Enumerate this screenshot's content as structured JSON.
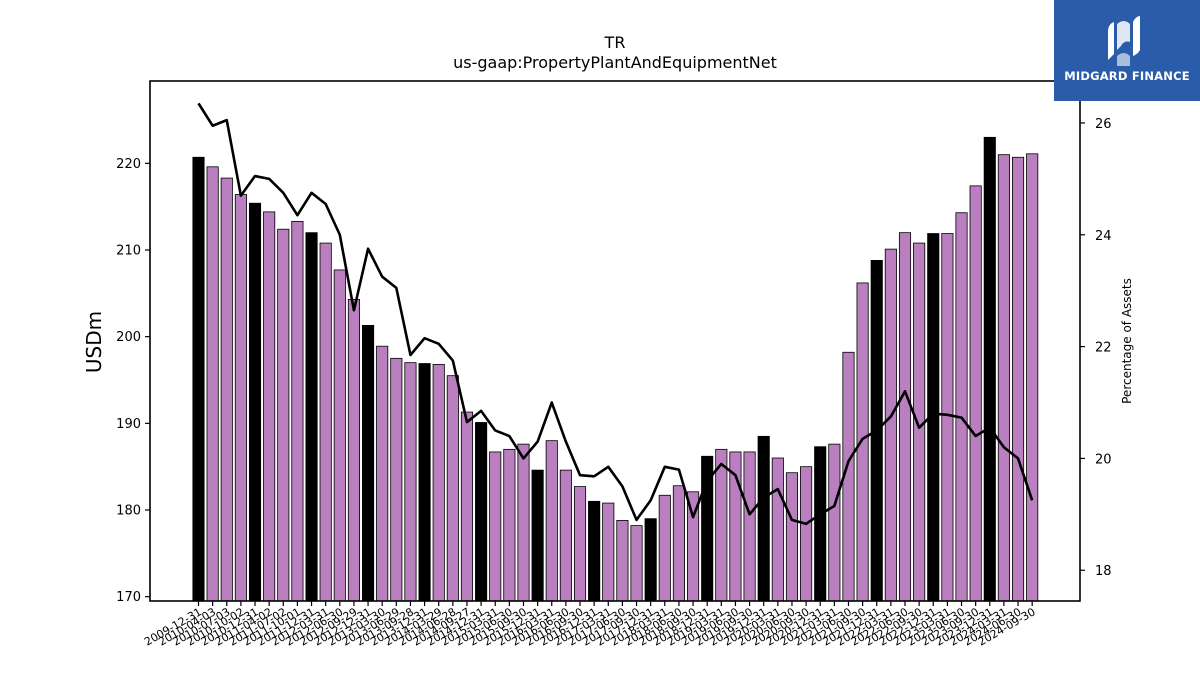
{
  "logo": {
    "text": "MIDGARD FINANCE",
    "icon": "midgard-logo-icon",
    "background": "#2a5caa"
  },
  "chart_data": {
    "type": "bar",
    "title": "TR",
    "subtitle": "us-gaap:PropertyPlantAndEquipmentNet",
    "ylabel": "USDm",
    "y2label": "Percentage of Assets",
    "ylim": [
      169.5,
      229.5
    ],
    "y2lim": [
      17.45,
      26.75
    ],
    "yticks": [
      170,
      180,
      190,
      200,
      210,
      220
    ],
    "y2ticks": [
      18,
      20,
      22,
      24,
      26
    ],
    "colors": {
      "annual": "#000000",
      "quarter": "#b97fbf",
      "line": "#000000"
    },
    "categories": [
      "2009-12-31",
      "2010-04-03",
      "2010-07-03",
      "2010-10-02",
      "2010-12-31",
      "2011-04-02",
      "2011-07-02",
      "2011-10-01",
      "2011-12-31",
      "2012-03-31",
      "2012-06-30",
      "2012-09-29",
      "2012-12-31",
      "2013-03-30",
      "2013-06-29",
      "2013-09-28",
      "2013-12-31",
      "2014-03-29",
      "2014-06-28",
      "2014-09-27",
      "2014-12-31",
      "2015-03-31",
      "2015-06-30",
      "2015-09-30",
      "2015-12-31",
      "2016-03-31",
      "2016-06-30",
      "2016-09-30",
      "2016-12-31",
      "2017-03-31",
      "2017-06-30",
      "2017-09-30",
      "2017-12-31",
      "2018-03-31",
      "2018-06-30",
      "2018-09-30",
      "2018-12-31",
      "2019-03-31",
      "2019-06-30",
      "2019-09-30",
      "2019-12-31",
      "2020-03-31",
      "2020-06-30",
      "2020-09-30",
      "2020-12-31",
      "2021-03-31",
      "2021-06-30",
      "2021-09-30",
      "2021-12-31",
      "2022-03-31",
      "2022-06-30",
      "2022-09-30",
      "2022-12-31",
      "2023-03-31",
      "2023-06-30",
      "2023-09-30",
      "2023-12-31",
      "2024-03-31",
      "2024-06-30",
      "2024-09-30"
    ],
    "series": [
      {
        "values": [
          220.7,
          219.6,
          218.3,
          216.4,
          215.4,
          214.4,
          212.4,
          213.3,
          212.0,
          210.8,
          207.7,
          204.3,
          201.3,
          198.9,
          197.5,
          197.0,
          196.9,
          196.8,
          195.5,
          191.3,
          190.1,
          186.7,
          187.0,
          187.6,
          184.6,
          188.0,
          184.6,
          182.7,
          181.0,
          180.8,
          178.8,
          178.2,
          179.0,
          181.7,
          182.8,
          182.1,
          186.2,
          187.0,
          186.7,
          186.7,
          188.5,
          186.0,
          184.3,
          185.0,
          187.3,
          187.6,
          198.2,
          206.2,
          208.8,
          210.1,
          212.0,
          210.8,
          211.9,
          211.9,
          214.3,
          217.4,
          223.0,
          221.0,
          220.7,
          221.1
        ],
        "annual": [
          1,
          0,
          0,
          0,
          1,
          0,
          0,
          0,
          1,
          0,
          0,
          0,
          1,
          0,
          0,
          0,
          1,
          0,
          0,
          0,
          1,
          0,
          0,
          0,
          1,
          0,
          0,
          0,
          1,
          0,
          0,
          0,
          1,
          0,
          0,
          0,
          1,
          0,
          0,
          0,
          1,
          0,
          0,
          0,
          1,
          0,
          0,
          0,
          1,
          0,
          0,
          0,
          1,
          0,
          0,
          0,
          1,
          0,
          0,
          0
        ]
      },
      {
        "axis": "y2",
        "values": [
          26.35,
          25.95,
          26.05,
          24.7,
          25.05,
          25.0,
          24.75,
          24.35,
          24.75,
          24.55,
          24.0,
          22.65,
          23.75,
          23.25,
          23.05,
          21.85,
          22.15,
          22.05,
          21.75,
          20.65,
          20.85,
          20.5,
          20.4,
          20.0,
          20.3,
          21.0,
          20.3,
          19.7,
          19.68,
          19.85,
          19.5,
          18.9,
          19.25,
          19.85,
          19.8,
          18.95,
          19.6,
          19.9,
          19.7,
          19.0,
          19.3,
          19.45,
          18.9,
          18.83,
          19.0,
          19.15,
          19.95,
          20.35,
          20.5,
          20.75,
          21.2,
          20.55,
          20.8,
          20.78,
          20.73,
          20.4,
          20.55,
          20.2,
          20.0,
          19.25
        ]
      }
    ]
  }
}
